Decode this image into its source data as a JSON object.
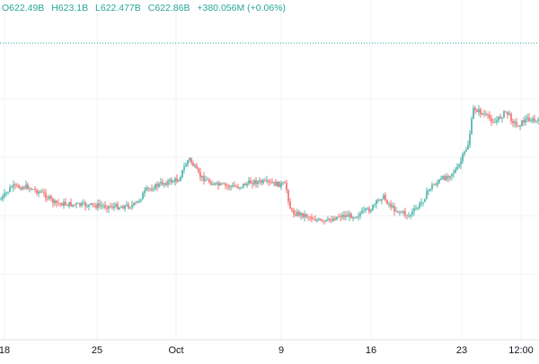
{
  "legend": {
    "open": "O622.49B",
    "high": "H623.1B",
    "low": "L622.477B",
    "close": "C622.86B",
    "change": "+380.056M (+0.06%)"
  },
  "colors": {
    "up": "#26a69a",
    "down": "#ef5350",
    "grid": "#f0f3fa",
    "axis_text": "#131722",
    "price_line": "#26a69a"
  },
  "chart_data": {
    "type": "candlestick",
    "x_ticks": [
      "18",
      "25",
      "Oct",
      "9",
      "16",
      "23",
      "12:00"
    ],
    "price_line_dotted": true,
    "trend_y_shape": [
      [
        0.0,
        0.555
      ],
      [
        0.02,
        0.52
      ],
      [
        0.05,
        0.52
      ],
      [
        0.08,
        0.54
      ],
      [
        0.1,
        0.565
      ],
      [
        0.14,
        0.57
      ],
      [
        0.18,
        0.572
      ],
      [
        0.22,
        0.575
      ],
      [
        0.25,
        0.57
      ],
      [
        0.27,
        0.53
      ],
      [
        0.3,
        0.51
      ],
      [
        0.33,
        0.5
      ],
      [
        0.35,
        0.44
      ],
      [
        0.37,
        0.49
      ],
      [
        0.4,
        0.515
      ],
      [
        0.44,
        0.52
      ],
      [
        0.47,
        0.505
      ],
      [
        0.5,
        0.51
      ],
      [
        0.53,
        0.515
      ],
      [
        0.54,
        0.59
      ],
      [
        0.57,
        0.6
      ],
      [
        0.6,
        0.62
      ],
      [
        0.63,
        0.6
      ],
      [
        0.66,
        0.6
      ],
      [
        0.69,
        0.58
      ],
      [
        0.71,
        0.545
      ],
      [
        0.73,
        0.58
      ],
      [
        0.76,
        0.6
      ],
      [
        0.78,
        0.57
      ],
      [
        0.8,
        0.52
      ],
      [
        0.83,
        0.49
      ],
      [
        0.85,
        0.47
      ],
      [
        0.87,
        0.4
      ],
      [
        0.88,
        0.3
      ],
      [
        0.9,
        0.32
      ],
      [
        0.92,
        0.34
      ],
      [
        0.94,
        0.31
      ],
      [
        0.96,
        0.35
      ],
      [
        0.98,
        0.33
      ],
      [
        1.0,
        0.34
      ]
    ]
  }
}
